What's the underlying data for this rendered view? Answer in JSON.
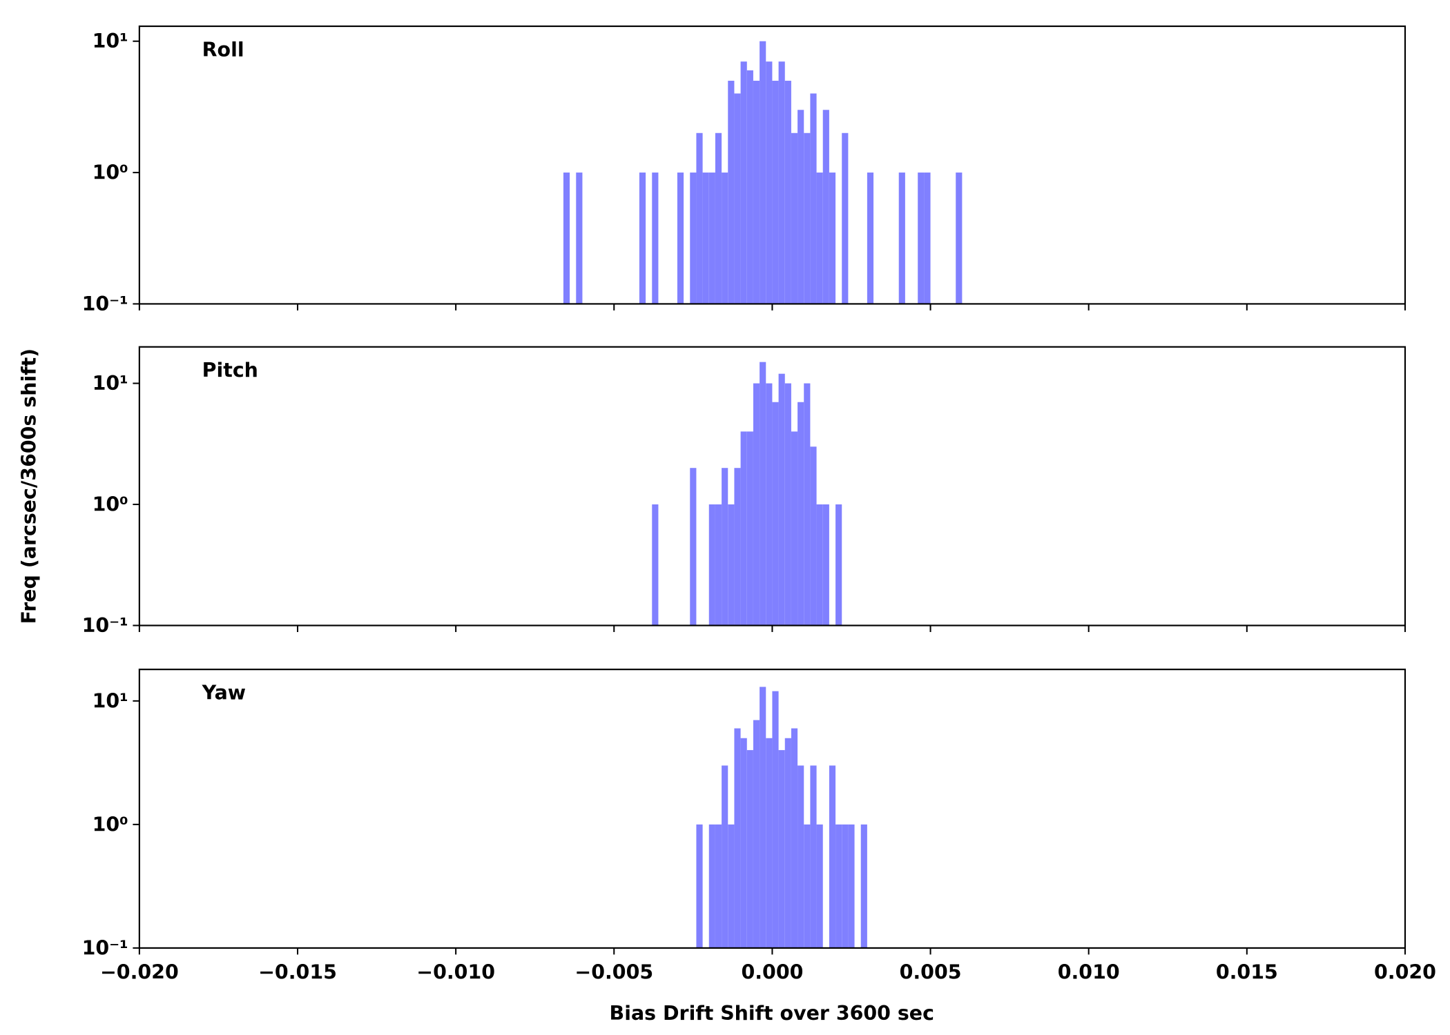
{
  "chart_data": [
    {
      "type": "histogram",
      "annotation": "Roll",
      "color": "#8080ff",
      "log_y": true,
      "bins": [
        -0.0066,
        -0.0064,
        -0.0062,
        -0.006,
        -0.0058,
        -0.0056,
        -0.0054,
        -0.0052,
        -0.005,
        -0.0048,
        -0.0046,
        -0.0044,
        -0.0042,
        -0.004,
        -0.0038,
        -0.0036,
        -0.0034,
        -0.0032,
        -0.003,
        -0.0028,
        -0.0026,
        -0.0024,
        -0.0022,
        -0.002,
        -0.0018,
        -0.0016,
        -0.0014,
        -0.0012,
        -0.001,
        -0.0008,
        -0.0006,
        -0.0004,
        -0.0002,
        0,
        0.0002,
        0.0004,
        0.0006,
        0.0008,
        0.001,
        0.0012,
        0.0014,
        0.0016,
        0.0018,
        0.002,
        0.0022,
        0.0024,
        0.0026,
        0.0028,
        0.003,
        0.0032,
        0.0034,
        0.0036,
        0.0038,
        0.004,
        0.0042,
        0.0044,
        0.0046,
        0.0048,
        0.005,
        0.0052,
        0.0054,
        0.0056,
        0.0058,
        0.006
      ],
      "values": [
        1,
        0,
        1,
        0,
        0,
        0,
        0,
        0,
        0,
        0,
        0,
        0,
        1,
        0,
        1,
        0,
        0,
        0,
        1,
        0,
        1,
        2,
        1,
        1,
        2,
        1,
        5,
        4,
        7,
        6,
        5,
        10,
        7,
        5,
        7,
        5,
        2,
        3,
        2,
        4,
        1,
        3,
        1,
        0,
        2,
        0,
        0,
        0,
        1,
        0,
        0,
        0,
        0,
        1,
        0,
        0,
        1,
        1,
        0,
        0,
        0,
        0,
        1
      ],
      "xlim": [
        -0.02,
        0.02
      ],
      "ylim": [
        0.1,
        13
      ],
      "yticks": [
        {
          "value": 0.1,
          "label": "10⁻¹"
        },
        {
          "value": 1,
          "label": "10⁰"
        },
        {
          "value": 10,
          "label": "10¹"
        }
      ]
    },
    {
      "type": "histogram",
      "annotation": "Pitch",
      "color": "#8080ff",
      "log_y": true,
      "ylabel": "Freq (arcsec/3600s shift)",
      "bins": [
        -0.0038,
        -0.0036,
        -0.0034,
        -0.0032,
        -0.003,
        -0.0028,
        -0.0026,
        -0.0024,
        -0.0022,
        -0.002,
        -0.0018,
        -0.0016,
        -0.0014,
        -0.0012,
        -0.001,
        -0.0008,
        -0.0006,
        -0.0004,
        -0.0002,
        0,
        0.0002,
        0.0004,
        0.0006,
        0.0008,
        0.001,
        0.0012,
        0.0014,
        0.0016,
        0.0018,
        0.002,
        0.0022
      ],
      "values": [
        1,
        0,
        0,
        0,
        0,
        0,
        2,
        0,
        0,
        1,
        1,
        2,
        1,
        2,
        4,
        4,
        10,
        15,
        10,
        7,
        12,
        10,
        4,
        7,
        10,
        3,
        1,
        1,
        0,
        1
      ],
      "xlim": [
        -0.02,
        0.02
      ],
      "ylim": [
        0.1,
        20
      ],
      "yticks": [
        {
          "value": 0.1,
          "label": "10⁻¹"
        },
        {
          "value": 1,
          "label": "10⁰"
        },
        {
          "value": 10,
          "label": "10¹"
        }
      ]
    },
    {
      "type": "histogram",
      "annotation": "Yaw",
      "color": "#8080ff",
      "log_y": true,
      "xlabel": "Bias Drift Shift over 3600 sec",
      "bins": [
        -0.0024,
        -0.0022,
        -0.002,
        -0.0018,
        -0.0016,
        -0.0014,
        -0.0012,
        -0.001,
        -0.0008,
        -0.0006,
        -0.0004,
        -0.0002,
        0,
        0.0002,
        0.0004,
        0.0006,
        0.0008,
        0.001,
        0.0012,
        0.0014,
        0.0016,
        0.0018,
        0.002,
        0.0022,
        0.0024,
        0.0026,
        0.0028,
        0.003
      ],
      "values": [
        1,
        0,
        1,
        1,
        3,
        1,
        6,
        5,
        4,
        7,
        13,
        5,
        12,
        4,
        5,
        6,
        3,
        1,
        3,
        1,
        0,
        3,
        1,
        1,
        1,
        0,
        1
      ],
      "xlim": [
        -0.02,
        0.02
      ],
      "ylim": [
        0.1,
        18
      ],
      "yticks": [
        {
          "value": 0.1,
          "label": "10⁻¹"
        },
        {
          "value": 1,
          "label": "10⁰"
        },
        {
          "value": 10,
          "label": "10¹"
        }
      ],
      "xticks": [
        {
          "value": -0.02,
          "label": "−0.020"
        },
        {
          "value": -0.015,
          "label": "−0.015"
        },
        {
          "value": -0.01,
          "label": "−0.010"
        },
        {
          "value": -0.005,
          "label": "−0.005"
        },
        {
          "value": 0,
          "label": "0.000"
        },
        {
          "value": 0.005,
          "label": "0.005"
        },
        {
          "value": 0.01,
          "label": "0.010"
        },
        {
          "value": 0.015,
          "label": "0.015"
        },
        {
          "value": 0.02,
          "label": "0.020"
        }
      ]
    }
  ]
}
